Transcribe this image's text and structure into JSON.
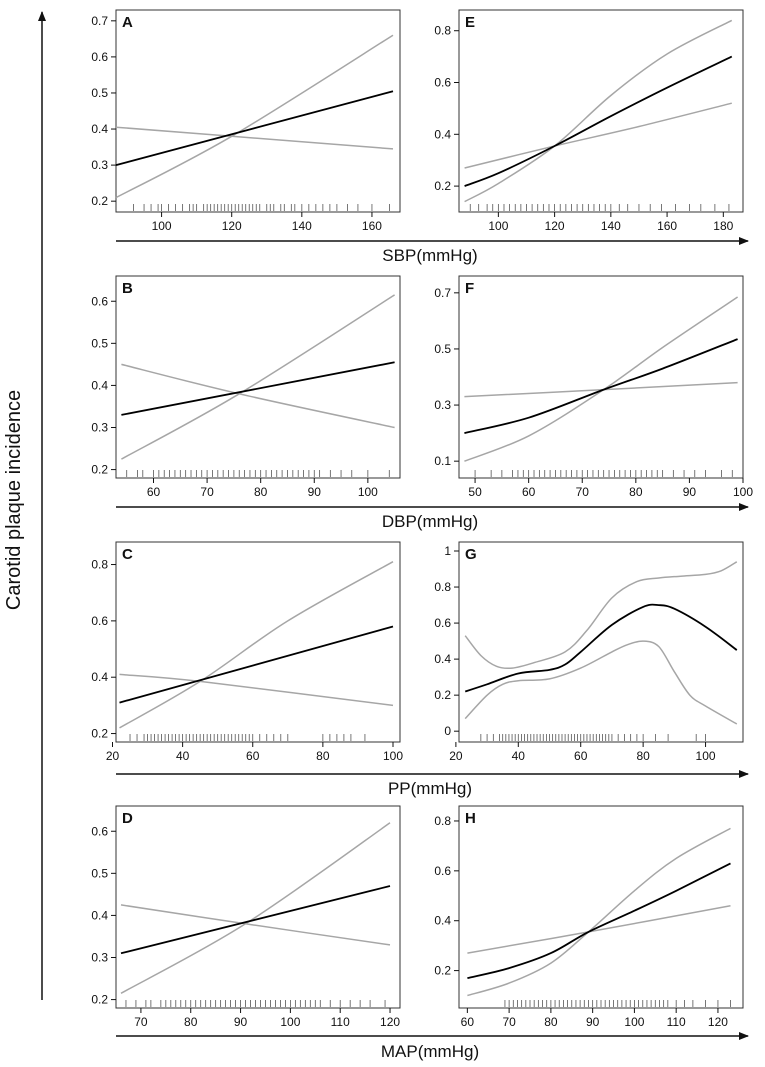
{
  "figure": {
    "y_axis_title": "Carotid plaque incidence"
  },
  "rows": [
    {
      "x_axis_title": "SBP(mmHg)"
    },
    {
      "x_axis_title": "DBP(mmHg)"
    },
    {
      "x_axis_title": "PP(mmHg)"
    },
    {
      "x_axis_title": "MAP(mmHg)"
    }
  ],
  "colors": {
    "fit": "#000000",
    "ci": "#a6a6a6",
    "frame": "#333333"
  },
  "chart_data": [
    {
      "type": "line",
      "label": "A",
      "xlabel": "SBP(mmHg)",
      "ylabel": "Carotid plaque incidence",
      "xlim": [
        87,
        168
      ],
      "ylim": [
        0.17,
        0.73
      ],
      "xticks": [
        100,
        120,
        140,
        160
      ],
      "yticks": [
        0.2,
        0.3,
        0.4,
        0.5,
        0.6,
        0.7
      ],
      "series": [
        {
          "name": "estimate",
          "x": [
            87,
            166
          ],
          "y": [
            0.3,
            0.505
          ]
        },
        {
          "name": "upper 95% CI",
          "x": [
            87,
            120,
            166
          ],
          "y": [
            0.21,
            0.38,
            0.66
          ]
        },
        {
          "name": "lower 95% CI",
          "x": [
            87,
            120,
            166
          ],
          "y": [
            0.405,
            0.38,
            0.345
          ]
        }
      ],
      "rug": [
        92,
        95,
        97,
        99,
        100,
        102,
        104,
        106,
        108,
        109,
        110,
        112,
        113,
        114,
        115,
        116,
        117,
        118,
        119,
        120,
        121,
        122,
        123,
        124,
        125,
        126,
        127,
        128,
        130,
        131,
        132,
        134,
        135,
        137,
        138,
        140,
        142,
        144,
        146,
        148,
        150,
        153,
        156,
        160,
        165
      ]
    },
    {
      "type": "line",
      "label": "E",
      "xlabel": "SBP(mmHg)",
      "ylabel": "Carotid plaque incidence",
      "xlim": [
        86,
        187
      ],
      "ylim": [
        0.1,
        0.88
      ],
      "xticks": [
        100,
        120,
        140,
        160,
        180
      ],
      "yticks": [
        0.2,
        0.4,
        0.6,
        0.8
      ],
      "series": [
        {
          "name": "estimate",
          "x": [
            88,
            100,
            120,
            140,
            160,
            183
          ],
          "y": [
            0.2,
            0.25,
            0.355,
            0.47,
            0.58,
            0.7
          ]
        },
        {
          "name": "upper 95% CI",
          "x": [
            88,
            100,
            120,
            140,
            160,
            183
          ],
          "y": [
            0.14,
            0.21,
            0.355,
            0.55,
            0.71,
            0.84
          ]
        },
        {
          "name": "lower 95% CI",
          "x": [
            88,
            120,
            150,
            183
          ],
          "y": [
            0.27,
            0.355,
            0.43,
            0.52
          ]
        }
      ],
      "rug": [
        90,
        93,
        96,
        98,
        100,
        102,
        104,
        106,
        108,
        110,
        112,
        114,
        116,
        118,
        120,
        122,
        124,
        126,
        128,
        130,
        132,
        134,
        136,
        138,
        140,
        143,
        146,
        150,
        154,
        158,
        163,
        168,
        172,
        177,
        182
      ]
    },
    {
      "type": "line",
      "label": "B",
      "xlabel": "DBP(mmHg)",
      "ylabel": "Carotid plaque incidence",
      "xlim": [
        53,
        106
      ],
      "ylim": [
        0.18,
        0.66
      ],
      "xticks": [
        60,
        70,
        80,
        90,
        100
      ],
      "yticks": [
        0.2,
        0.3,
        0.4,
        0.5,
        0.6
      ],
      "series": [
        {
          "name": "estimate",
          "x": [
            54,
            105
          ],
          "y": [
            0.33,
            0.455
          ]
        },
        {
          "name": "upper 95% CI",
          "x": [
            54,
            76,
            105
          ],
          "y": [
            0.225,
            0.38,
            0.615
          ]
        },
        {
          "name": "lower 95% CI",
          "x": [
            54,
            76,
            105
          ],
          "y": [
            0.45,
            0.38,
            0.3
          ]
        }
      ],
      "rug": [
        55,
        57,
        58,
        60,
        61,
        62,
        63,
        64,
        65,
        66,
        67,
        68,
        69,
        70,
        71,
        72,
        73,
        74,
        75,
        76,
        77,
        78,
        79,
        80,
        81,
        82,
        83,
        84,
        85,
        86,
        87,
        88,
        89,
        90,
        91,
        93,
        95,
        97,
        100,
        104
      ]
    },
    {
      "type": "line",
      "label": "F",
      "xlabel": "DBP(mmHg)",
      "ylabel": "Carotid plaque incidence",
      "xlim": [
        47,
        100
      ],
      "ylim": [
        0.04,
        0.76
      ],
      "xticks": [
        50,
        60,
        70,
        80,
        90,
        100
      ],
      "yticks": [
        0.1,
        0.3,
        0.5,
        0.7
      ],
      "series": [
        {
          "name": "estimate",
          "x": [
            48,
            60,
            74,
            85,
            99
          ],
          "y": [
            0.2,
            0.255,
            0.355,
            0.43,
            0.535
          ]
        },
        {
          "name": "upper 95% CI",
          "x": [
            48,
            60,
            74,
            85,
            99
          ],
          "y": [
            0.1,
            0.19,
            0.355,
            0.505,
            0.685
          ]
        },
        {
          "name": "lower 95% CI",
          "x": [
            48,
            74,
            99
          ],
          "y": [
            0.33,
            0.355,
            0.38
          ]
        }
      ],
      "rug": [
        50,
        53,
        55,
        57,
        58,
        59,
        60,
        61,
        62,
        63,
        64,
        65,
        66,
        67,
        68,
        69,
        70,
        71,
        72,
        73,
        74,
        75,
        76,
        77,
        78,
        79,
        80,
        81,
        82,
        83,
        84,
        85,
        87,
        89,
        91,
        93,
        96,
        98
      ]
    },
    {
      "type": "line",
      "label": "C",
      "xlabel": "PP(mmHg)",
      "ylabel": "Carotid plaque incidence",
      "xlim": [
        21,
        102
      ],
      "ylim": [
        0.17,
        0.88
      ],
      "xticks": [
        20,
        40,
        60,
        80,
        100
      ],
      "yticks": [
        0.2,
        0.4,
        0.6,
        0.8
      ],
      "series": [
        {
          "name": "estimate",
          "x": [
            22,
            100
          ],
          "y": [
            0.31,
            0.58
          ]
        },
        {
          "name": "upper 95% CI",
          "x": [
            22,
            45,
            70,
            100
          ],
          "y": [
            0.22,
            0.385,
            0.6,
            0.81
          ]
        },
        {
          "name": "lower 95% CI",
          "x": [
            22,
            45,
            100
          ],
          "y": [
            0.41,
            0.385,
            0.3
          ]
        }
      ],
      "rug": [
        25,
        27,
        29,
        30,
        31,
        32,
        33,
        34,
        35,
        36,
        37,
        38,
        39,
        40,
        41,
        42,
        43,
        44,
        45,
        46,
        47,
        48,
        49,
        50,
        51,
        52,
        53,
        54,
        55,
        56,
        57,
        58,
        59,
        60,
        62,
        64,
        66,
        68,
        70,
        80,
        82,
        84,
        86,
        88,
        92
      ]
    },
    {
      "type": "line",
      "label": "G",
      "xlabel": "PP(mmHg)",
      "ylabel": "Carotid plaque incidence",
      "xlim": [
        21,
        112
      ],
      "ylim": [
        -0.06,
        1.05
      ],
      "xticks": [
        20,
        40,
        60,
        80,
        100
      ],
      "yticks": [
        0.0,
        0.2,
        0.4,
        0.6,
        0.8,
        1.0
      ],
      "series": [
        {
          "name": "estimate",
          "x": [
            23,
            30,
            40,
            50,
            55,
            60,
            70,
            80,
            85,
            90,
            100,
            110
          ],
          "y": [
            0.22,
            0.26,
            0.32,
            0.34,
            0.37,
            0.44,
            0.59,
            0.69,
            0.7,
            0.68,
            0.58,
            0.45
          ]
        },
        {
          "name": "upper 95% CI",
          "x": [
            23,
            28,
            33,
            38,
            45,
            55,
            62,
            70,
            78,
            85,
            92,
            100,
            105,
            110
          ],
          "y": [
            0.53,
            0.42,
            0.36,
            0.35,
            0.38,
            0.44,
            0.56,
            0.74,
            0.83,
            0.85,
            0.86,
            0.87,
            0.89,
            0.94
          ]
        },
        {
          "name": "lower 95% CI",
          "x": [
            23,
            30,
            35,
            40,
            50,
            60,
            70,
            75,
            80,
            85,
            90,
            95,
            100,
            110
          ],
          "y": [
            0.07,
            0.2,
            0.26,
            0.28,
            0.29,
            0.35,
            0.44,
            0.48,
            0.5,
            0.47,
            0.33,
            0.2,
            0.14,
            0.04
          ]
        }
      ],
      "rug": [
        28,
        30,
        32,
        34,
        35,
        36,
        37,
        38,
        39,
        40,
        41,
        42,
        43,
        44,
        45,
        46,
        47,
        48,
        49,
        50,
        51,
        52,
        53,
        54,
        55,
        56,
        57,
        58,
        59,
        60,
        61,
        62,
        63,
        64,
        65,
        66,
        67,
        68,
        69,
        70,
        72,
        74,
        76,
        78,
        80,
        84,
        88,
        97,
        100
      ]
    },
    {
      "type": "line",
      "label": "D",
      "xlabel": "MAP(mmHg)",
      "ylabel": "Carotid plaque incidence",
      "xlim": [
        65,
        122
      ],
      "ylim": [
        0.18,
        0.66
      ],
      "xticks": [
        70,
        80,
        90,
        100,
        110,
        120
      ],
      "yticks": [
        0.2,
        0.3,
        0.4,
        0.5,
        0.6
      ],
      "series": [
        {
          "name": "estimate",
          "x": [
            66,
            120
          ],
          "y": [
            0.31,
            0.47
          ]
        },
        {
          "name": "upper 95% CI",
          "x": [
            66,
            91,
            120
          ],
          "y": [
            0.215,
            0.38,
            0.62
          ]
        },
        {
          "name": "lower 95% CI",
          "x": [
            66,
            91,
            120
          ],
          "y": [
            0.425,
            0.38,
            0.33
          ]
        }
      ],
      "rug": [
        67,
        69,
        71,
        72,
        74,
        75,
        76,
        77,
        78,
        79,
        80,
        81,
        82,
        83,
        84,
        85,
        86,
        87,
        88,
        89,
        90,
        91,
        92,
        93,
        94,
        95,
        96,
        97,
        98,
        99,
        100,
        101,
        102,
        103,
        104,
        105,
        106,
        108,
        110,
        112,
        114,
        116,
        119
      ]
    },
    {
      "type": "line",
      "label": "H",
      "xlabel": "MAP(mmHg)",
      "ylabel": "Carotid plaque incidence",
      "xlim": [
        58,
        126
      ],
      "ylim": [
        0.05,
        0.86
      ],
      "xticks": [
        60,
        70,
        80,
        90,
        100,
        110,
        120
      ],
      "yticks": [
        0.2,
        0.4,
        0.6,
        0.8
      ],
      "series": [
        {
          "name": "estimate",
          "x": [
            60,
            70,
            80,
            89,
            100,
            110,
            123
          ],
          "y": [
            0.17,
            0.21,
            0.27,
            0.355,
            0.44,
            0.52,
            0.63
          ]
        },
        {
          "name": "upper 95% CI",
          "x": [
            60,
            70,
            80,
            89,
            100,
            110,
            123
          ],
          "y": [
            0.1,
            0.15,
            0.23,
            0.355,
            0.52,
            0.65,
            0.77
          ]
        },
        {
          "name": "lower 95% CI",
          "x": [
            60,
            89,
            123
          ],
          "y": [
            0.27,
            0.355,
            0.46
          ]
        }
      ],
      "rug": [
        69,
        70,
        71,
        72,
        73,
        74,
        75,
        76,
        77,
        78,
        79,
        80,
        81,
        82,
        83,
        84,
        85,
        86,
        87,
        88,
        89,
        90,
        91,
        92,
        93,
        94,
        95,
        96,
        97,
        98,
        99,
        100,
        101,
        102,
        103,
        104,
        105,
        106,
        107,
        108,
        110,
        112,
        114,
        117,
        120,
        123
      ]
    }
  ]
}
